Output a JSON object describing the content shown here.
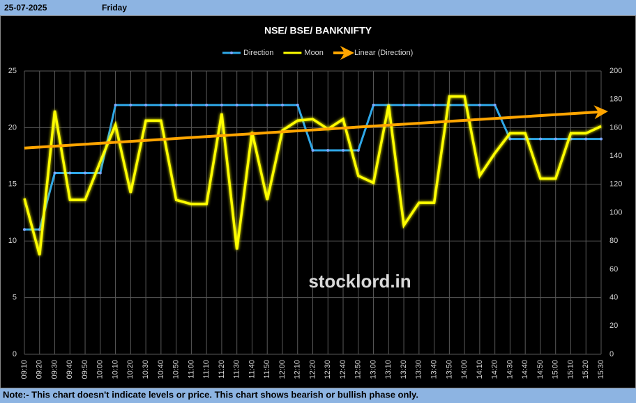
{
  "header": {
    "date": "25-07-2025",
    "day": "Friday"
  },
  "footer": {
    "note": "Note:- This chart doesn't indicate levels or price. This chart shows bearish or bullish phase only."
  },
  "watermark": "stocklord.in",
  "chart_data": {
    "type": "line",
    "title": "NSE/ BSE/ BANKNIFTY",
    "categories": [
      "09:10",
      "09:20",
      "09:30",
      "09:40",
      "09:50",
      "10:00",
      "10:10",
      "10:20",
      "10:30",
      "10:40",
      "10:50",
      "11:00",
      "11:10",
      "11:20",
      "11:30",
      "11:40",
      "11:50",
      "12:00",
      "12:10",
      "12:20",
      "12:30",
      "12:40",
      "12:50",
      "13:00",
      "13:10",
      "13:20",
      "13:30",
      "13:40",
      "13:50",
      "14:00",
      "14:10",
      "14:20",
      "14:30",
      "14:40",
      "14:50",
      "15:00",
      "15:10",
      "15:20",
      "15:30"
    ],
    "series": [
      {
        "name": "Direction",
        "color": "#2fa8e8",
        "values": [
          11,
          11,
          16,
          16,
          16,
          16,
          22,
          22,
          22,
          22,
          22,
          22,
          22,
          22,
          22,
          22,
          22,
          22,
          22,
          18,
          18,
          18,
          18,
          22,
          22,
          22,
          22,
          22,
          22,
          22,
          22,
          22,
          19,
          19,
          19,
          19,
          19,
          19,
          19
        ]
      },
      {
        "name": "Moon",
        "color": "#ffff00",
        "axis": "y2",
        "values": [
          110,
          70,
          172,
          109,
          109,
          136,
          162,
          114,
          165,
          165,
          109,
          106,
          106,
          170,
          74,
          157,
          109,
          158,
          165,
          166,
          159,
          166,
          126,
          121,
          176,
          91,
          107,
          107,
          182,
          182,
          126,
          142,
          156,
          156,
          124,
          124,
          156,
          156,
          161
        ]
      }
    ],
    "trendline": {
      "name": "Linear (Direction)",
      "color": "#ffa500",
      "values": [
        18.2,
        21.4
      ]
    },
    "ylim": [
      0,
      25
    ],
    "yticks": [
      0,
      5,
      10,
      15,
      20,
      25
    ],
    "y2lim": [
      0,
      200
    ],
    "y2ticks": [
      0,
      20,
      40,
      60,
      80,
      100,
      120,
      140,
      160,
      180,
      200
    ],
    "grid": true
  }
}
